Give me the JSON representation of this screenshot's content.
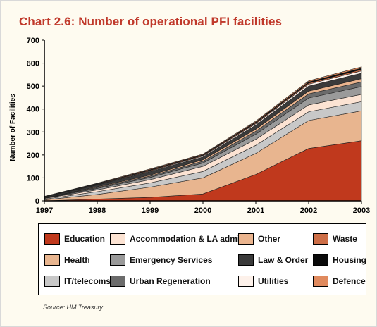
{
  "chart_data": {
    "type": "area",
    "stacked": true,
    "title": "Chart 2.6: Number of operational PFI facilities",
    "ylabel": "Number of Facilities",
    "xlabel": "",
    "ylim": [
      0,
      700
    ],
    "yticks": [
      0,
      100,
      200,
      300,
      400,
      500,
      600,
      700
    ],
    "x": [
      "1997",
      "1998",
      "1999",
      "2000",
      "2001",
      "2002",
      "2003"
    ],
    "series": [
      {
        "name": "Education",
        "color": "#c0391d",
        "values": [
          0,
          8,
          15,
          30,
          115,
          228,
          262
        ]
      },
      {
        "name": "Health",
        "color": "#e8b58f",
        "values": [
          4,
          20,
          45,
          70,
          92,
          122,
          130
        ]
      },
      {
        "name": "IT/telecoms",
        "color": "#c8c8c8",
        "values": [
          3,
          12,
          18,
          28,
          35,
          38,
          40
        ]
      },
      {
        "name": "Accommodation & LA admin",
        "color": "#fce3d3",
        "values": [
          3,
          8,
          14,
          22,
          26,
          30,
          32
        ]
      },
      {
        "name": "Emergency Services",
        "color": "#9a9a9a",
        "values": [
          1,
          6,
          10,
          15,
          22,
          30,
          34
        ]
      },
      {
        "name": "Urban Regeneration",
        "color": "#6b6b6b",
        "values": [
          1,
          4,
          6,
          8,
          13,
          18,
          20
        ]
      },
      {
        "name": "Other",
        "color": "#eab48e",
        "values": [
          1,
          3,
          4,
          6,
          9,
          12,
          14
        ]
      },
      {
        "name": "Law & Order",
        "color": "#3a3a3a",
        "values": [
          3,
          8,
          15,
          12,
          18,
          22,
          24
        ]
      },
      {
        "name": "Utilities",
        "color": "#fdf1ea",
        "values": [
          1,
          2,
          3,
          4,
          6,
          8,
          10
        ]
      },
      {
        "name": "Waste",
        "color": "#cd6e47",
        "values": [
          1,
          2,
          3,
          3,
          4,
          5,
          6
        ]
      },
      {
        "name": "Housing",
        "color": "#0a0a0a",
        "values": [
          1,
          2,
          3,
          3,
          4,
          5,
          6
        ]
      },
      {
        "name": "Defence",
        "color": "#e08a5e",
        "values": [
          1,
          2,
          3,
          3,
          4,
          5,
          6
        ]
      }
    ],
    "legend_order": [
      "Education",
      "Accommodation & LA admin",
      "Other",
      "Waste",
      "Health",
      "Emergency Services",
      "Law & Order",
      "Housing",
      "IT/telecoms",
      "Urban Regeneration",
      "Utilities",
      "Defence"
    ],
    "legend_placement": "bottom",
    "grid": false
  },
  "source": "Source: HM Treasury."
}
